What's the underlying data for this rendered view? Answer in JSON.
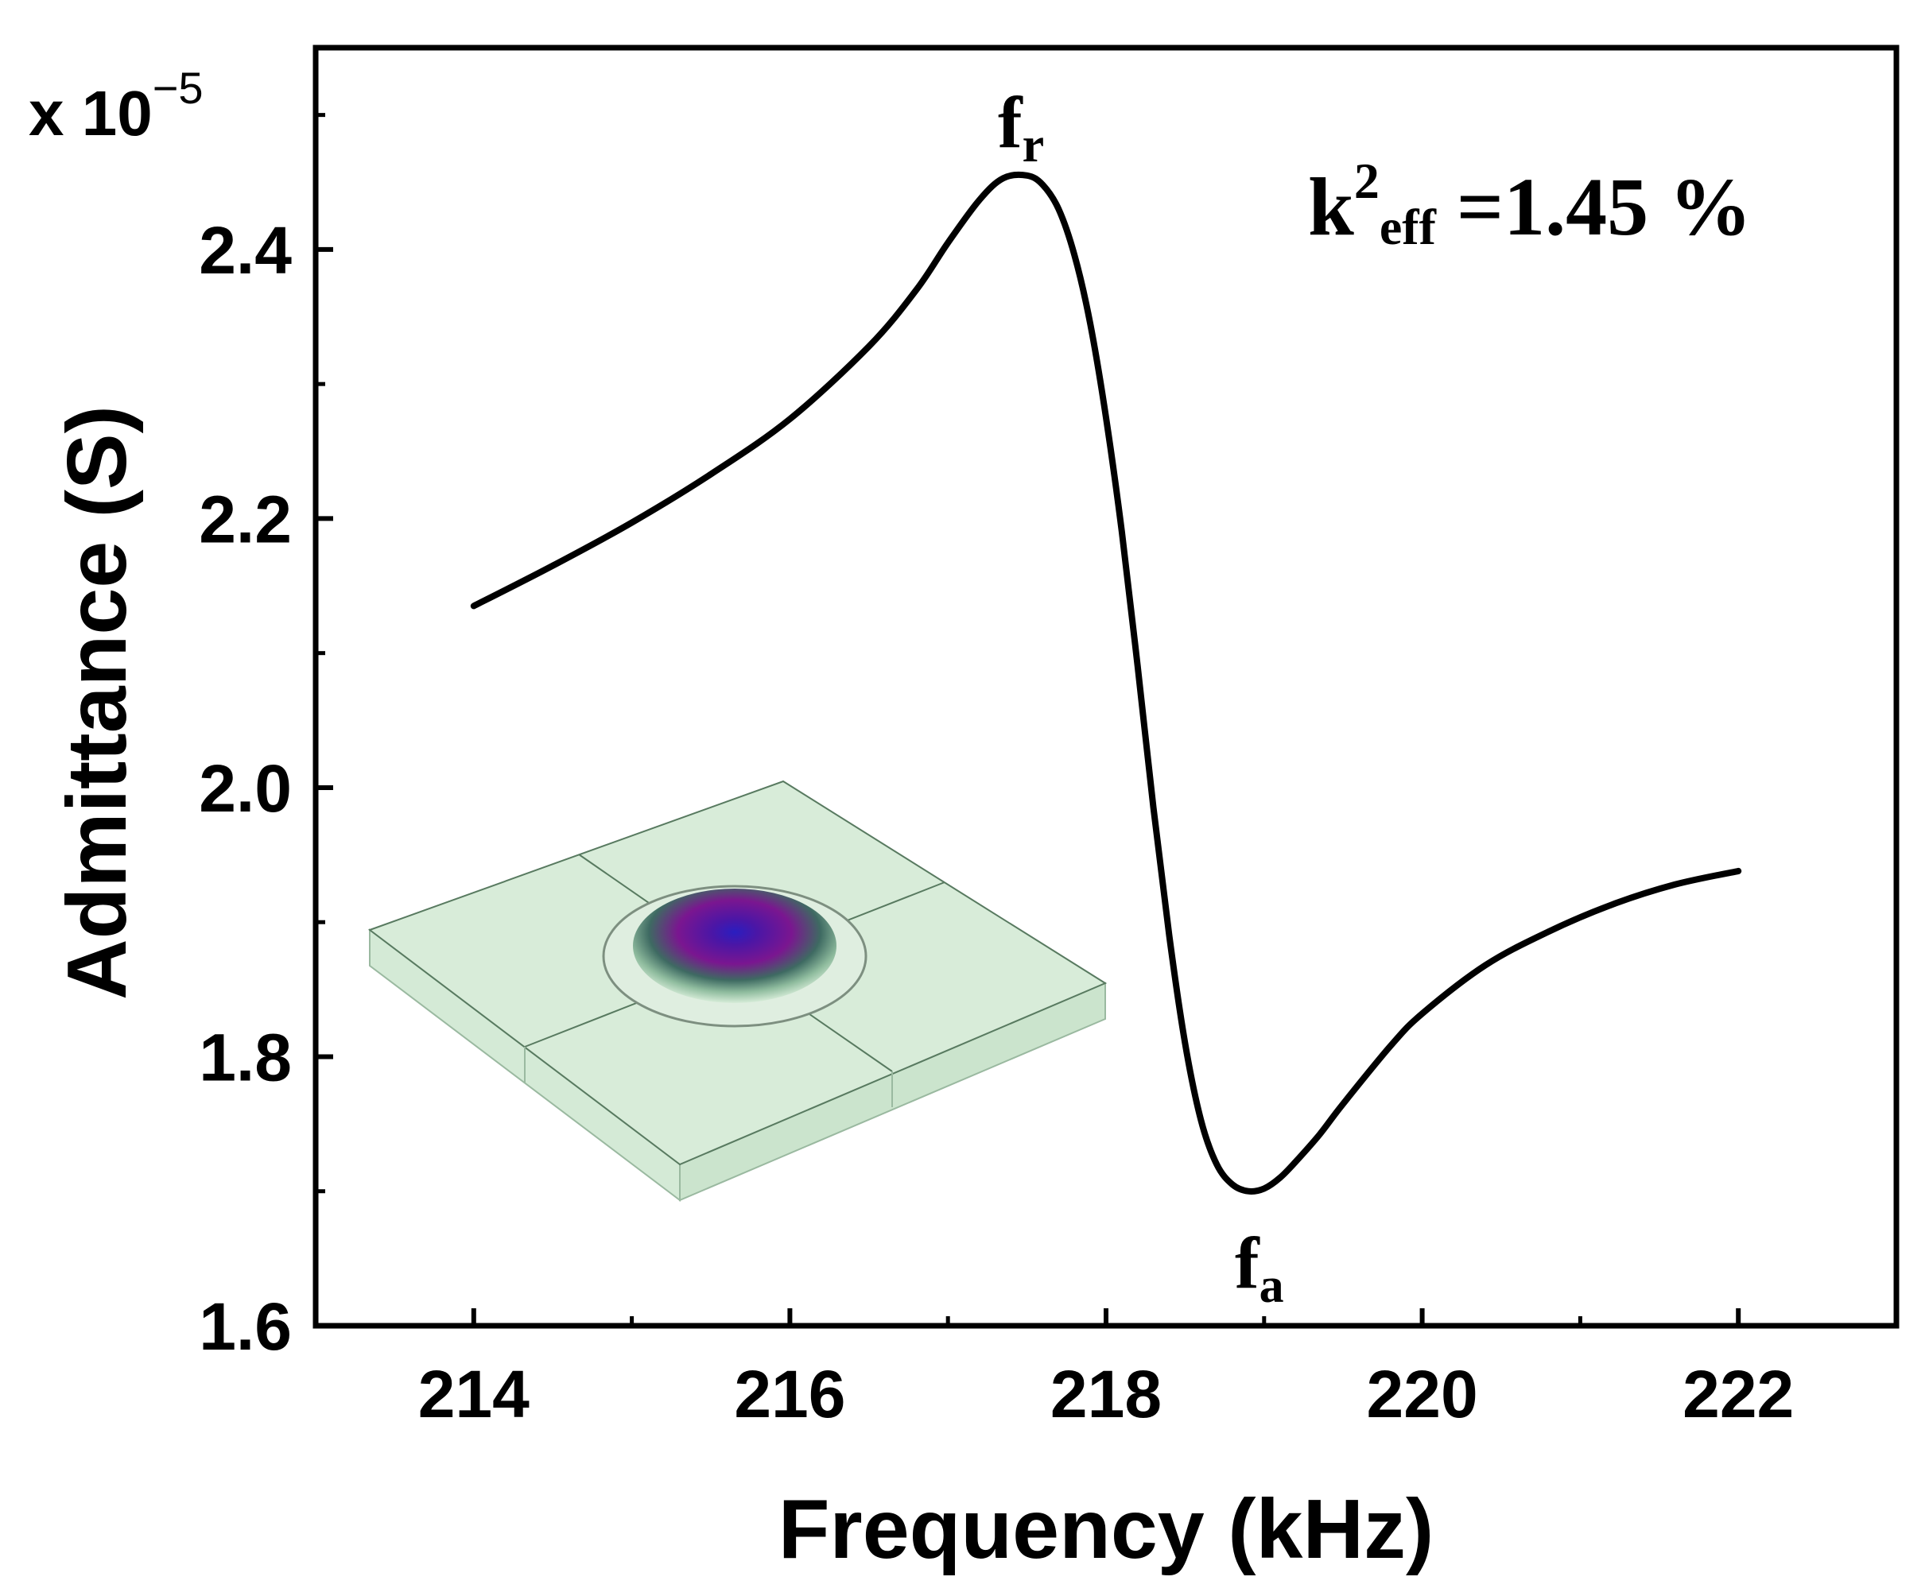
{
  "chart_data": {
    "type": "line",
    "title": "",
    "xlabel": "Frequency (kHz)",
    "ylabel": "Admittance (S)",
    "y_multiplier_label": {
      "prefix": "x 10",
      "exponent": "−5"
    },
    "xlim": [
      213,
      223
    ],
    "ylim": [
      1.6,
      2.55
    ],
    "x_ticks": [
      214,
      216,
      218,
      220,
      222
    ],
    "x_tick_labels": [
      "214",
      "216",
      "218",
      "220",
      "222"
    ],
    "x_minor_ticks": [
      215,
      217,
      219,
      221
    ],
    "y_ticks": [
      1.6,
      1.8,
      2.0,
      2.2,
      2.4
    ],
    "y_tick_labels": [
      "1.6",
      "1.8",
      "2.0",
      "2.2",
      "2.4"
    ],
    "y_minor_ticks": [
      1.7,
      1.9,
      2.1,
      2.3,
      2.5
    ],
    "series": [
      {
        "name": "Admittance",
        "color": "#000000",
        "x": [
          214.0,
          214.5,
          215.0,
          215.5,
          216.0,
          216.5,
          216.8,
          217.0,
          217.2,
          217.35,
          217.5,
          217.6,
          217.7,
          217.8,
          217.9,
          218.0,
          218.1,
          218.2,
          218.3,
          218.4,
          218.5,
          218.6,
          218.7,
          218.8,
          218.9,
          219.0,
          219.1,
          219.2,
          219.35,
          219.5,
          219.8,
          220.0,
          220.4,
          220.8,
          221.2,
          221.6,
          222.0
        ],
        "y": [
          2.135,
          2.165,
          2.197,
          2.233,
          2.274,
          2.328,
          2.37,
          2.405,
          2.437,
          2.453,
          2.455,
          2.448,
          2.43,
          2.396,
          2.345,
          2.275,
          2.19,
          2.09,
          1.985,
          1.89,
          1.81,
          1.753,
          1.72,
          1.705,
          1.7,
          1.702,
          1.71,
          1.722,
          1.742,
          1.765,
          1.808,
          1.832,
          1.868,
          1.893,
          1.913,
          1.928,
          1.938
        ]
      }
    ],
    "annotations": [
      {
        "id": "fr",
        "base": "f",
        "sub": "r",
        "x": 217.5,
        "y": 2.5
      },
      {
        "id": "fa",
        "base": "f",
        "sub": "a",
        "x": 219.0,
        "y": 1.645
      },
      {
        "id": "k2eff",
        "base": "k",
        "sup": "2",
        "sub": "eff",
        "rest": " =1.45 %"
      }
    ],
    "grid": false,
    "inset": "3D resonator plate model (green square plate with circular electrode showing purple mode-shape displacement)"
  }
}
